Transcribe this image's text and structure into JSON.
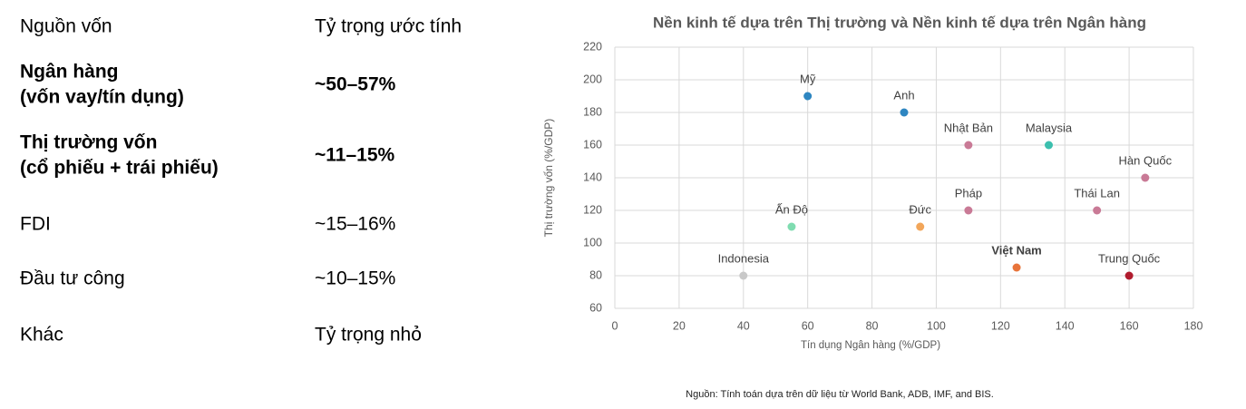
{
  "table": {
    "header": [
      "Nguồn vốn",
      "Tỷ trọng ước tính"
    ],
    "rows": [
      {
        "source": [
          "Ngân hàng",
          "(vốn vay/tín dụng)"
        ],
        "share": "~50–57%",
        "bold": true
      },
      {
        "source": [
          "Thị trường vốn",
          "(cổ phiếu + trái phiếu)"
        ],
        "share": "~11–15%",
        "bold": true
      },
      {
        "source": [
          "FDI"
        ],
        "share": "~15–16%",
        "bold": false
      },
      {
        "source": [
          "Đầu tư công"
        ],
        "share": "~10–15%",
        "bold": false
      },
      {
        "source": [
          "Khác"
        ],
        "share": "Tỷ trọng nhỏ",
        "bold": false
      }
    ]
  },
  "chart_data": {
    "type": "scatter",
    "title": "Nền kinh tế dựa trên Thị trường và Nền kinh tế dựa trên Ngân hàng",
    "xlabel": "Tín dụng Ngân hàng (%/GDP)",
    "ylabel": "Thị trường vốn (%/GDP)",
    "labels": [
      "Mỹ",
      "Anh",
      "Nhật Bản",
      "Malaysia",
      "Hàn Quốc",
      "Thái Lan",
      "Pháp",
      "Đức",
      "Ấn Độ",
      "Indonesia",
      "Việt Nam",
      "Trung Quốc"
    ],
    "x": [
      60,
      90,
      110,
      135,
      165,
      150,
      110,
      95,
      55,
      40,
      125,
      160
    ],
    "values": [
      190,
      180,
      160,
      160,
      140,
      120,
      120,
      110,
      110,
      80,
      85,
      80
    ],
    "colors": [
      "#2e86c1",
      "#2e86c1",
      "#c97a96",
      "#3cbfae",
      "#c97a96",
      "#c97a96",
      "#c97a96",
      "#f2a65a",
      "#7fdcb0",
      "#c8c8c8",
      "#e8743b",
      "#b01c2e"
    ],
    "bold": [
      false,
      false,
      false,
      false,
      false,
      false,
      false,
      false,
      false,
      false,
      true,
      false
    ],
    "xlim": [
      0,
      180
    ],
    "xticks": [
      0,
      20,
      40,
      60,
      80,
      100,
      120,
      140,
      160,
      180
    ],
    "ylim": [
      60,
      220
    ],
    "yticks": [
      60,
      80,
      100,
      120,
      140,
      160,
      180,
      200,
      220
    ],
    "grid": true
  },
  "source_note": "Nguồn: Tính toán dựa trên dữ liệu từ World Bank, ADB, IMF, and BIS."
}
